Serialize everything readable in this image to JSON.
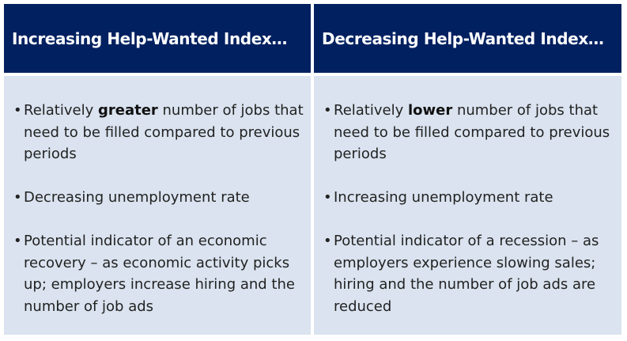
{
  "columns": [
    {
      "header": "Increasing Help-Wanted Index…",
      "items": [
        {
          "pre": "Relatively ",
          "bold": "greater",
          "post": " number of jobs that need to be filled compared to previous periods"
        },
        {
          "pre": "Decreasing unemployment rate",
          "bold": "",
          "post": ""
        },
        {
          "pre": "Potential indicator of an economic recovery – as economic activity picks up; employers increase hiring and the number of job ads",
          "bold": "",
          "post": ""
        }
      ]
    },
    {
      "header": "Decreasing Help-Wanted Index…",
      "items": [
        {
          "pre": "Relatively ",
          "bold": "lower",
          "post": " number of jobs that need to be filled compared to previous periods"
        },
        {
          "pre": "Increasing unemployment rate",
          "bold": "",
          "post": ""
        },
        {
          "pre": "Potential indicator of a recession – as employers experience slowing sales; hiring and the number of job ads are reduced",
          "bold": "",
          "post": ""
        }
      ]
    }
  ],
  "bullet_glyph": "•",
  "colors": {
    "header_bg": "#002060",
    "header_text": "#ffffff",
    "cell_bg": "#dae3ef",
    "body_text": "#222222"
  }
}
